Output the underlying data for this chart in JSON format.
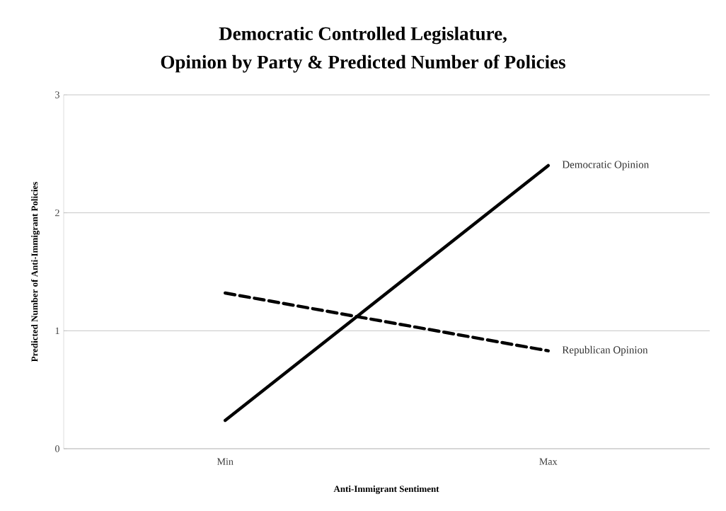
{
  "chart_data": {
    "type": "line",
    "title": "Democratic Controlled Legislature,",
    "subtitle": "Opinion by Party & Predicted Number of Policies",
    "xlabel": "Anti-Immigrant Sentiment",
    "ylabel": "Predicted Number of Anti-Immigrant Policies",
    "categories": [
      "Min",
      "Max"
    ],
    "series": [
      {
        "name": "Democratic Opinion",
        "color": "#000000",
        "values": [
          0.24,
          2.4
        ],
        "line_style": "solid"
      },
      {
        "name": "Republican Opinion",
        "color": "#000000",
        "values": [
          1.32,
          0.83
        ],
        "line_style": "dashed"
      }
    ],
    "ylim": [
      0,
      3
    ],
    "yticks": [
      0,
      1,
      2,
      3
    ],
    "grid": "y",
    "legend": false,
    "marker": "none"
  }
}
